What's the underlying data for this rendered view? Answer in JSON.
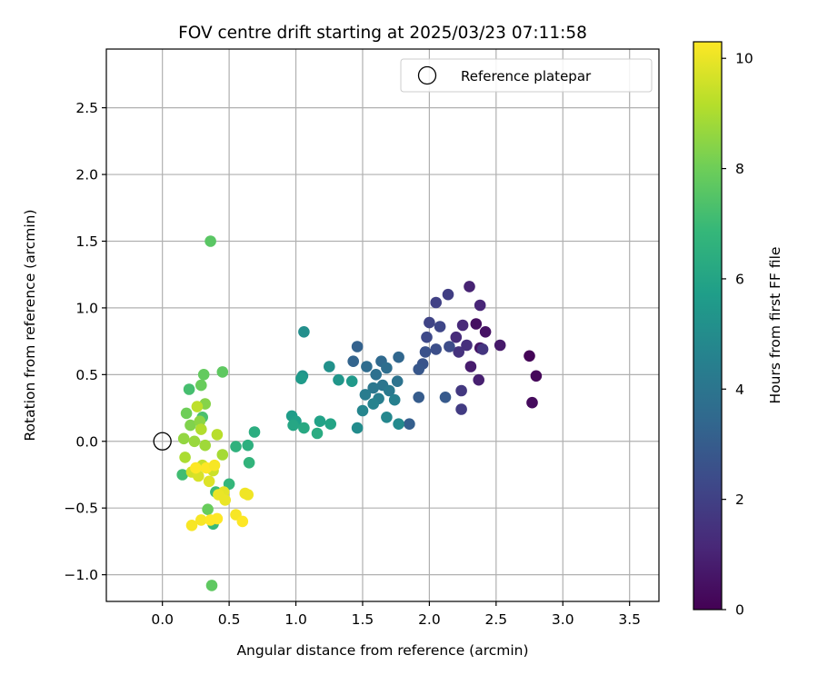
{
  "chart_data": {
    "type": "scatter",
    "title": "FOV centre drift starting at 2025/03/23 07:11:58",
    "xlabel": "Angular distance from reference (arcmin)",
    "ylabel": "Rotation from reference (arcmin)",
    "xlim": [
      -0.42,
      3.72
    ],
    "ylim": [
      -1.2,
      2.94
    ],
    "xticks": [
      0.0,
      0.5,
      1.0,
      1.5,
      2.0,
      2.5,
      3.0,
      3.5
    ],
    "yticks": [
      -1.0,
      -0.5,
      0.0,
      0.5,
      1.0,
      1.5,
      2.0,
      2.5
    ],
    "xtick_labels": [
      "0.0",
      "0.5",
      "1.0",
      "1.5",
      "2.0",
      "2.5",
      "3.0",
      "3.5"
    ],
    "ytick_labels": [
      "−1.0",
      "−0.5",
      "0.0",
      "0.5",
      "1.0",
      "1.5",
      "2.0",
      "2.5"
    ],
    "grid": true,
    "legend": {
      "position": "upper right",
      "entries": [
        "Reference platepar"
      ]
    },
    "reference_point": {
      "x": 0.0,
      "y": 0.0
    },
    "colorbar": {
      "label": "Hours from first FF file",
      "min": 0,
      "max": 10.3,
      "ticks": [
        0,
        2,
        4,
        6,
        8,
        10
      ],
      "tick_labels": [
        "0",
        "2",
        "4",
        "6",
        "8",
        "10"
      ],
      "colormap": "viridis",
      "colors": [
        "#440154",
        "#482878",
        "#3e4989",
        "#31688e",
        "#26828e",
        "#1f9e89",
        "#35b779",
        "#6ece58",
        "#b5de2b",
        "#fde725"
      ]
    },
    "points": [
      {
        "x": 2.75,
        "y": 0.64,
        "h": 0.1
      },
      {
        "x": 2.8,
        "y": 0.49,
        "h": 0.2
      },
      {
        "x": 2.77,
        "y": 0.29,
        "h": 0.3
      },
      {
        "x": 2.35,
        "y": 0.88,
        "h": 0.4
      },
      {
        "x": 2.42,
        "y": 0.82,
        "h": 0.5
      },
      {
        "x": 2.38,
        "y": 0.7,
        "h": 0.6
      },
      {
        "x": 2.53,
        "y": 0.72,
        "h": 0.7
      },
      {
        "x": 2.31,
        "y": 0.56,
        "h": 0.8
      },
      {
        "x": 2.37,
        "y": 0.46,
        "h": 0.9
      },
      {
        "x": 2.3,
        "y": 1.16,
        "h": 1.0
      },
      {
        "x": 2.38,
        "y": 1.02,
        "h": 1.1
      },
      {
        "x": 2.25,
        "y": 0.87,
        "h": 1.2
      },
      {
        "x": 2.2,
        "y": 0.78,
        "h": 1.3
      },
      {
        "x": 2.28,
        "y": 0.72,
        "h": 1.4
      },
      {
        "x": 2.22,
        "y": 0.67,
        "h": 1.5
      },
      {
        "x": 2.4,
        "y": 0.69,
        "h": 1.6
      },
      {
        "x": 2.24,
        "y": 0.38,
        "h": 1.7
      },
      {
        "x": 2.24,
        "y": 0.24,
        "h": 1.8
      },
      {
        "x": 2.14,
        "y": 1.1,
        "h": 1.9
      },
      {
        "x": 2.05,
        "y": 1.04,
        "h": 2.0
      },
      {
        "x": 2.0,
        "y": 0.89,
        "h": 2.1
      },
      {
        "x": 2.08,
        "y": 0.86,
        "h": 2.2
      },
      {
        "x": 1.98,
        "y": 0.78,
        "h": 2.3
      },
      {
        "x": 2.15,
        "y": 0.71,
        "h": 2.4
      },
      {
        "x": 2.05,
        "y": 0.69,
        "h": 2.5
      },
      {
        "x": 1.97,
        "y": 0.67,
        "h": 2.6
      },
      {
        "x": 1.95,
        "y": 0.58,
        "h": 2.7
      },
      {
        "x": 1.92,
        "y": 0.54,
        "h": 2.8
      },
      {
        "x": 2.12,
        "y": 0.33,
        "h": 2.9
      },
      {
        "x": 1.92,
        "y": 0.33,
        "h": 3.0
      },
      {
        "x": 1.85,
        "y": 0.13,
        "h": 3.1
      },
      {
        "x": 1.46,
        "y": 0.71,
        "h": 3.2
      },
      {
        "x": 1.43,
        "y": 0.6,
        "h": 3.3
      },
      {
        "x": 1.77,
        "y": 0.63,
        "h": 3.4
      },
      {
        "x": 1.64,
        "y": 0.6,
        "h": 3.5
      },
      {
        "x": 1.53,
        "y": 0.56,
        "h": 3.6
      },
      {
        "x": 1.68,
        "y": 0.55,
        "h": 3.7
      },
      {
        "x": 1.6,
        "y": 0.5,
        "h": 3.8
      },
      {
        "x": 1.76,
        "y": 0.45,
        "h": 3.9
      },
      {
        "x": 1.65,
        "y": 0.42,
        "h": 4.0
      },
      {
        "x": 1.58,
        "y": 0.4,
        "h": 4.1
      },
      {
        "x": 1.7,
        "y": 0.38,
        "h": 4.2
      },
      {
        "x": 1.52,
        "y": 0.35,
        "h": 4.3
      },
      {
        "x": 1.62,
        "y": 0.32,
        "h": 4.4
      },
      {
        "x": 1.74,
        "y": 0.31,
        "h": 4.5
      },
      {
        "x": 1.58,
        "y": 0.28,
        "h": 4.6
      },
      {
        "x": 1.5,
        "y": 0.23,
        "h": 4.7
      },
      {
        "x": 1.68,
        "y": 0.18,
        "h": 4.8
      },
      {
        "x": 1.77,
        "y": 0.13,
        "h": 4.9
      },
      {
        "x": 1.46,
        "y": 0.1,
        "h": 5.0
      },
      {
        "x": 1.06,
        "y": 0.82,
        "h": 5.1
      },
      {
        "x": 1.25,
        "y": 0.56,
        "h": 5.2
      },
      {
        "x": 1.05,
        "y": 0.49,
        "h": 5.3
      },
      {
        "x": 1.32,
        "y": 0.46,
        "h": 5.4
      },
      {
        "x": 1.42,
        "y": 0.45,
        "h": 5.5
      },
      {
        "x": 1.04,
        "y": 0.47,
        "h": 5.6
      },
      {
        "x": 0.97,
        "y": 0.19,
        "h": 5.7
      },
      {
        "x": 1.0,
        "y": 0.15,
        "h": 5.8
      },
      {
        "x": 1.18,
        "y": 0.15,
        "h": 5.9
      },
      {
        "x": 1.26,
        "y": 0.13,
        "h": 6.0
      },
      {
        "x": 0.98,
        "y": 0.12,
        "h": 6.1
      },
      {
        "x": 1.06,
        "y": 0.1,
        "h": 6.2
      },
      {
        "x": 1.16,
        "y": 0.06,
        "h": 6.3
      },
      {
        "x": 0.69,
        "y": 0.07,
        "h": 6.4
      },
      {
        "x": 0.64,
        "y": -0.03,
        "h": 6.5
      },
      {
        "x": 0.55,
        "y": -0.04,
        "h": 6.6
      },
      {
        "x": 0.65,
        "y": -0.16,
        "h": 6.7
      },
      {
        "x": 0.5,
        "y": -0.32,
        "h": 6.8
      },
      {
        "x": 0.38,
        "y": -0.62,
        "h": 6.9
      },
      {
        "x": 0.4,
        "y": -0.38,
        "h": 7.0
      },
      {
        "x": 0.15,
        "y": -0.25,
        "h": 7.1
      },
      {
        "x": 0.2,
        "y": 0.39,
        "h": 7.2
      },
      {
        "x": 0.3,
        "y": 0.18,
        "h": 7.3
      },
      {
        "x": 0.36,
        "y": 1.5,
        "h": 7.6
      },
      {
        "x": 0.45,
        "y": 0.52,
        "h": 7.7
      },
      {
        "x": 0.31,
        "y": 0.5,
        "h": 7.8
      },
      {
        "x": 0.29,
        "y": 0.42,
        "h": 7.9
      },
      {
        "x": 0.18,
        "y": 0.21,
        "h": 8.0
      },
      {
        "x": 0.34,
        "y": -0.51,
        "h": 7.9
      },
      {
        "x": 0.37,
        "y": -1.08,
        "h": 7.7
      },
      {
        "x": 0.21,
        "y": 0.12,
        "h": 8.3
      },
      {
        "x": 0.32,
        "y": 0.28,
        "h": 8.4
      },
      {
        "x": 0.28,
        "y": 0.15,
        "h": 8.5
      },
      {
        "x": 0.16,
        "y": 0.02,
        "h": 8.6
      },
      {
        "x": 0.24,
        "y": 0.0,
        "h": 8.7
      },
      {
        "x": 0.32,
        "y": -0.03,
        "h": 8.8
      },
      {
        "x": 0.45,
        "y": -0.1,
        "h": 8.9
      },
      {
        "x": 0.17,
        "y": -0.12,
        "h": 9.0
      },
      {
        "x": 0.29,
        "y": 0.09,
        "h": 9.1
      },
      {
        "x": 0.41,
        "y": 0.05,
        "h": 9.2
      },
      {
        "x": 0.26,
        "y": 0.26,
        "h": 9.3
      },
      {
        "x": 0.3,
        "y": -0.18,
        "h": 9.4
      },
      {
        "x": 0.38,
        "y": -0.22,
        "h": 9.5
      },
      {
        "x": 0.22,
        "y": -0.23,
        "h": 9.6
      },
      {
        "x": 0.27,
        "y": -0.26,
        "h": 9.7
      },
      {
        "x": 0.35,
        "y": -0.3,
        "h": 9.8
      },
      {
        "x": 0.46,
        "y": -0.38,
        "h": 9.9
      },
      {
        "x": 0.42,
        "y": -0.4,
        "h": 10.0
      },
      {
        "x": 0.47,
        "y": -0.44,
        "h": 10.0
      },
      {
        "x": 0.62,
        "y": -0.39,
        "h": 10.1
      },
      {
        "x": 0.64,
        "y": -0.4,
        "h": 10.1
      },
      {
        "x": 0.55,
        "y": -0.55,
        "h": 10.2
      },
      {
        "x": 0.22,
        "y": -0.63,
        "h": 10.2
      },
      {
        "x": 0.29,
        "y": -0.59,
        "h": 10.2
      },
      {
        "x": 0.36,
        "y": -0.59,
        "h": 10.3
      },
      {
        "x": 0.6,
        "y": -0.6,
        "h": 10.3
      },
      {
        "x": 0.41,
        "y": -0.58,
        "h": 10.3
      },
      {
        "x": 0.25,
        "y": -0.2,
        "h": 10.3
      },
      {
        "x": 0.33,
        "y": -0.2,
        "h": 10.3
      },
      {
        "x": 0.39,
        "y": -0.18,
        "h": 10.2
      }
    ]
  }
}
